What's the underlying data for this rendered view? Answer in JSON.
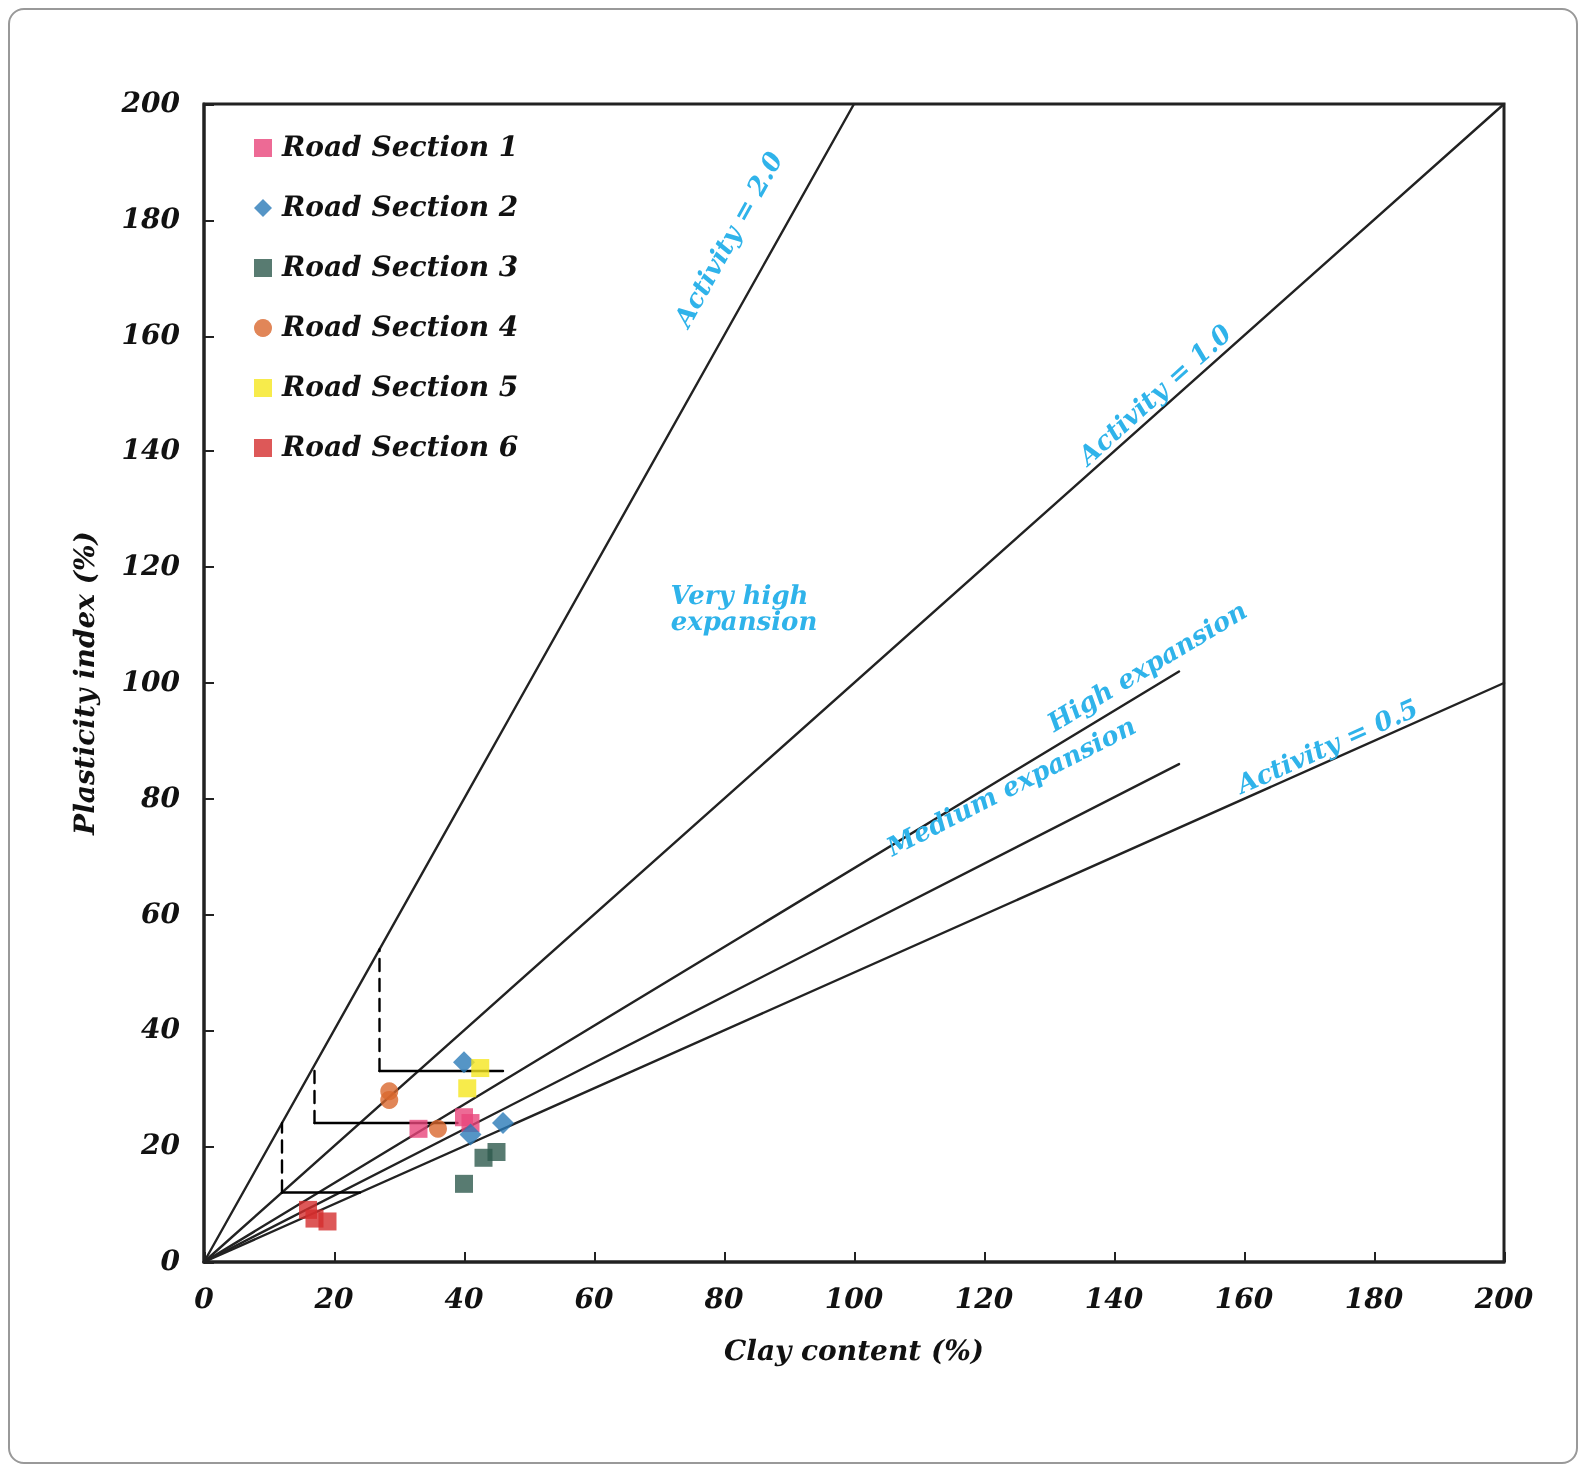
{
  "chart_data": {
    "type": "scatter",
    "xlabel": "Clay content (%)",
    "ylabel": "Plasticity index (%)",
    "xlim": [
      0,
      200
    ],
    "ylim": [
      0,
      200
    ],
    "xticks": [
      0,
      20,
      40,
      60,
      80,
      100,
      120,
      140,
      160,
      180,
      200
    ],
    "yticks": [
      0,
      20,
      40,
      60,
      80,
      100,
      120,
      140,
      160,
      180,
      200
    ],
    "grid": false,
    "legend": "top left",
    "series": [
      {
        "name": "Road Section 1",
        "color": "#e8457a",
        "marker": "square",
        "x": [
          33,
          40,
          41
        ],
        "values": [
          23,
          25,
          24
        ]
      },
      {
        "name": "Road Section 2",
        "color": "#2a7ab8",
        "marker": "diamond",
        "x": [
          40,
          41,
          46
        ],
        "values": [
          34.5,
          22,
          24
        ]
      },
      {
        "name": "Road Section 3",
        "color": "#2e5a4e",
        "marker": "square",
        "x": [
          40,
          43,
          45
        ],
        "values": [
          13.5,
          18,
          19
        ]
      },
      {
        "name": "Road Section 4",
        "color": "#d9682e",
        "marker": "circle",
        "x": [
          28.5,
          28.5,
          36
        ],
        "values": [
          29.5,
          28,
          23
        ]
      },
      {
        "name": "Road Section 5",
        "color": "#f5e61e",
        "marker": "square",
        "x": [
          42.5,
          40.5
        ],
        "values": [
          33.5,
          30
        ]
      },
      {
        "name": "Road Section 6",
        "color": "#d42e2e",
        "marker": "square",
        "x": [
          16,
          17,
          19
        ],
        "values": [
          9,
          7.5,
          7
        ]
      },
      {
        "type": "line",
        "color": "#222222",
        "marker": "none",
        "line_style": "solid",
        "x": [
          0,
          100
        ],
        "values": [
          0,
          200
        ]
      },
      {
        "type": "line",
        "color": "#222222",
        "marker": "none",
        "line_style": "solid",
        "x": [
          0,
          200
        ],
        "values": [
          0,
          200
        ]
      },
      {
        "type": "line",
        "color": "#222222",
        "marker": "none",
        "line_style": "solid",
        "x": [
          0,
          150
        ],
        "values": [
          0,
          102
        ]
      },
      {
        "type": "line",
        "color": "#222222",
        "marker": "none",
        "line_style": "solid",
        "x": [
          0,
          150
        ],
        "values": [
          0,
          86
        ]
      },
      {
        "type": "line",
        "color": "#222222",
        "marker": "none",
        "line_style": "solid",
        "x": [
          0,
          200
        ],
        "values": [
          0,
          100
        ]
      },
      {
        "type": "line",
        "color": "#000000",
        "marker": "none",
        "line_style": "dashed",
        "x": [
          12,
          12
        ],
        "values": [
          12,
          24
        ]
      },
      {
        "type": "line",
        "color": "#000000",
        "marker": "none",
        "line_style": "solid",
        "x": [
          12,
          24
        ],
        "values": [
          12,
          12
        ]
      },
      {
        "type": "line",
        "color": "#000000",
        "marker": "none",
        "line_style": "dashed",
        "x": [
          17,
          17
        ],
        "values": [
          24,
          34
        ]
      },
      {
        "type": "line",
        "color": "#000000",
        "marker": "none",
        "line_style": "solid",
        "x": [
          17,
          39
        ],
        "values": [
          24,
          24
        ]
      },
      {
        "type": "line",
        "color": "#000000",
        "marker": "none",
        "line_style": "dashed",
        "x": [
          27,
          27
        ],
        "values": [
          33,
          54
        ]
      },
      {
        "type": "line",
        "color": "#000000",
        "marker": "none",
        "line_style": "solid",
        "x": [
          27,
          46
        ],
        "values": [
          33,
          33
        ]
      }
    ],
    "annotations": [
      "Activity = 2.0",
      "Activity = 1.0",
      "Very high expansion",
      "High expansion",
      "Medium expansion",
      "Activity = 0.5"
    ]
  }
}
